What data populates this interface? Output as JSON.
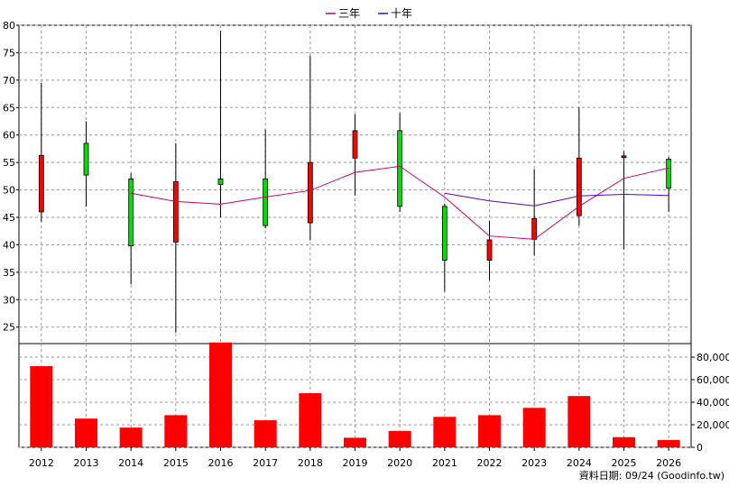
{
  "colors": {
    "up": "#ff0000",
    "down": "#00dd00",
    "wick": "#000000",
    "line_3y": "#cc0066",
    "line_10y": "#5500cc",
    "volume": "#ff0000",
    "grid": "#999999"
  },
  "source_note": "資料日期: 09/24  (Goodinfo.tw)",
  "chart_data": [
    {
      "type": "candlestick",
      "categories": [
        "2012",
        "2013",
        "2014",
        "2015",
        "2016",
        "2017",
        "2018",
        "2019",
        "2020",
        "2021",
        "2022",
        "2023",
        "2024",
        "2025",
        "2026"
      ],
      "ylim": [
        22,
        80
      ],
      "yticks": [
        25,
        30,
        35,
        40,
        45,
        50,
        55,
        60,
        65,
        70,
        75,
        80
      ],
      "grid": true,
      "legend_position": "top-center",
      "candles": [
        {
          "open": 46.0,
          "close": 56.3,
          "high": 69.5,
          "low": 44.2
        },
        {
          "open": 58.5,
          "close": 52.7,
          "high": 62.5,
          "low": 47.0
        },
        {
          "open": 52.0,
          "close": 39.8,
          "high": 53.0,
          "low": 32.8
        },
        {
          "open": 40.5,
          "close": 51.5,
          "high": 58.5,
          "low": 24.0
        },
        {
          "open": 52.0,
          "close": 51.0,
          "high": 79.0,
          "low": 45.0
        },
        {
          "open": 52.0,
          "close": 43.5,
          "high": 61.0,
          "low": 43.0
        },
        {
          "open": 44.0,
          "close": 55.0,
          "high": 74.5,
          "low": 40.8
        },
        {
          "open": 55.8,
          "close": 60.8,
          "high": 63.8,
          "low": 49.0
        },
        {
          "open": 60.8,
          "close": 47.0,
          "high": 64.0,
          "low": 46.0
        },
        {
          "open": 47.0,
          "close": 37.2,
          "high": 47.5,
          "low": 31.5
        },
        {
          "open": 37.2,
          "close": 40.9,
          "high": 44.3,
          "low": 33.5
        },
        {
          "open": 41.0,
          "close": 44.8,
          "high": 53.8,
          "low": 38.0
        },
        {
          "open": 45.3,
          "close": 55.8,
          "high": 65.0,
          "low": 43.5
        },
        {
          "open": 56.0,
          "close": 56.2,
          "high": 57.0,
          "low": 39.2
        },
        {
          "open": 55.6,
          "close": 50.3,
          "high": 56.0,
          "low": 46.0
        }
      ],
      "series": [
        {
          "name": "三年",
          "values": [
            null,
            null,
            49.4,
            47.9,
            47.4,
            48.7,
            49.9,
            53.2,
            54.3,
            48.7,
            41.6,
            41.0,
            47.0,
            52.1,
            54.0
          ]
        },
        {
          "name": "十年",
          "values": [
            null,
            null,
            null,
            null,
            null,
            null,
            null,
            null,
            null,
            49.4,
            48.0,
            47.1,
            48.9,
            49.2,
            49.0
          ]
        }
      ]
    },
    {
      "type": "bar",
      "categories": [
        "2012",
        "2013",
        "2014",
        "2015",
        "2016",
        "2017",
        "2018",
        "2019",
        "2020",
        "2021",
        "2022",
        "2023",
        "2024",
        "2025",
        "2026"
      ],
      "values": [
        72000,
        25500,
        17500,
        28500,
        93000,
        24000,
        48000,
        8500,
        14500,
        27000,
        28500,
        35000,
        45500,
        9000,
        6500
      ],
      "ylim": [
        0,
        92000
      ],
      "yticks": [
        0,
        20000,
        40000,
        60000,
        80000
      ],
      "ytick_labels": [
        "0",
        "20,000",
        "40,000",
        "60,000",
        "80,000"
      ],
      "grid": true
    }
  ]
}
